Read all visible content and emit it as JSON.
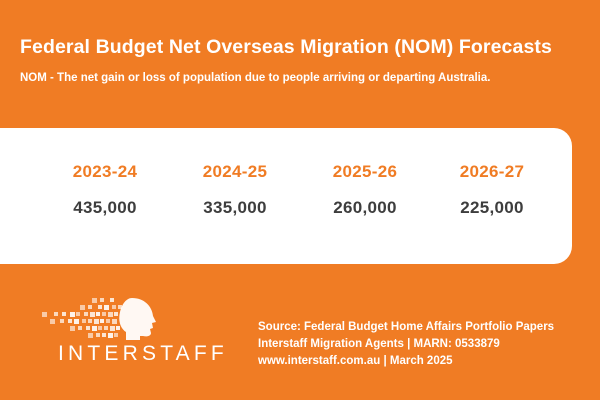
{
  "header": {
    "title": "Federal Budget Net Overseas Migration (NOM) Forecasts",
    "subtitle": "NOM - The net gain or loss of population due to people arriving or departing Australia."
  },
  "forecasts": [
    {
      "year": "2023-24",
      "value": "435,000"
    },
    {
      "year": "2024-25",
      "value": "335,000"
    },
    {
      "year": "2025-26",
      "value": "260,000"
    },
    {
      "year": "2026-27",
      "value": "225,000"
    }
  ],
  "logo": {
    "wordmark": "INTERSTAFF",
    "icon": "pixel-face-logo-icon"
  },
  "footer": {
    "source": "Source: Federal Budget Home Affairs Portfolio Papers",
    "agent": "Interstaff Migration Agents | MARN: 0533879",
    "website": "www.interstaff.com.au | March 2025"
  },
  "colors": {
    "background": "#f07c24",
    "accent_text": "#f07c24",
    "value_text": "#3d3d3d",
    "card": "#ffffff"
  }
}
